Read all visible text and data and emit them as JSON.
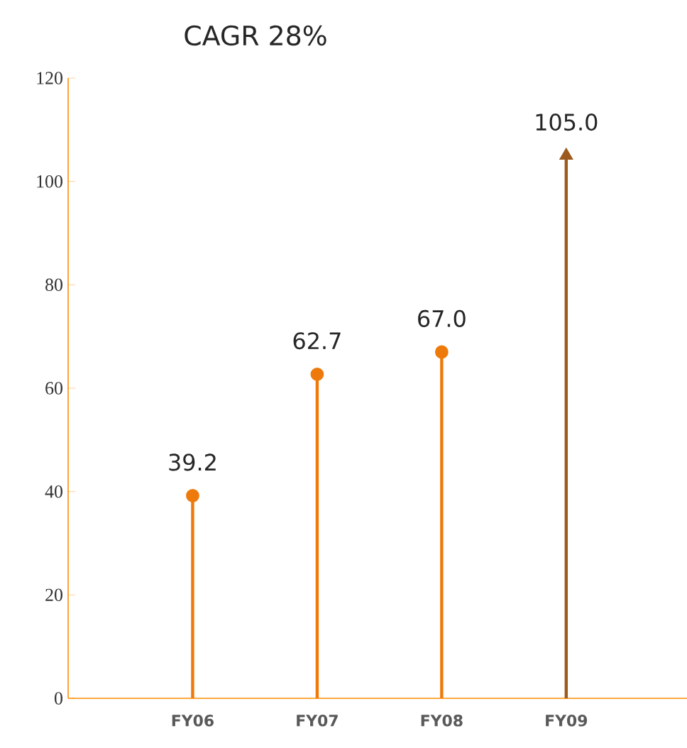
{
  "chart_data": {
    "type": "lollipop",
    "title": "CAGR 28%",
    "categories": [
      "FY06",
      "FY07",
      "FY08",
      "FY09"
    ],
    "series": [
      {
        "color": "#ee7a0c",
        "marker": "circle",
        "values": [
          39.2,
          62.7,
          67.0,
          null
        ],
        "value_labels": [
          "39.2",
          "62.7",
          "67.0",
          null
        ]
      },
      {
        "color": "#9c5a1e",
        "marker": "triangle",
        "values": [
          null,
          null,
          null,
          105.0
        ],
        "value_labels": [
          null,
          null,
          null,
          "105.0"
        ]
      }
    ],
    "ylim": [
      0,
      120
    ],
    "yticks": [
      0,
      20,
      40,
      60,
      80,
      100,
      120
    ],
    "grid": false
  }
}
